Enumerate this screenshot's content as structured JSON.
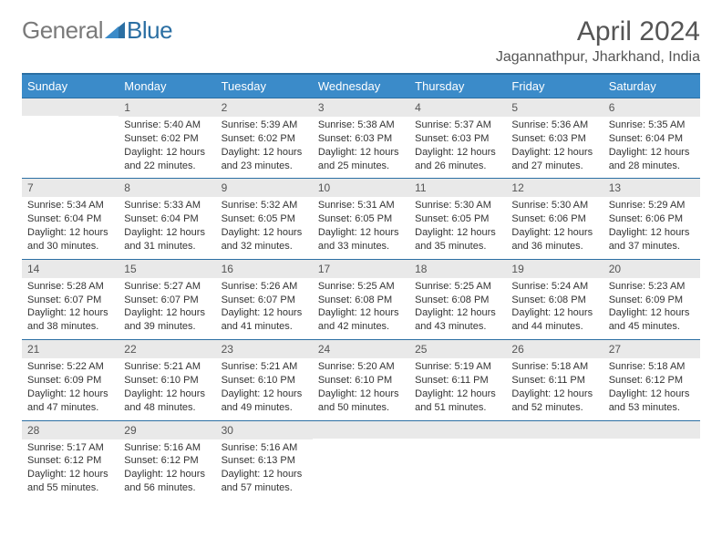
{
  "logo": {
    "text1": "General",
    "text2": "Blue"
  },
  "title": "April 2024",
  "location": "Jagannathpur, Jharkhand, India",
  "colors": {
    "header_bg": "#3b8bc9",
    "header_border": "#2b6fa3",
    "daynum_bg": "#e9e9e9",
    "text": "#333333",
    "muted": "#555555"
  },
  "weekdays": [
    "Sunday",
    "Monday",
    "Tuesday",
    "Wednesday",
    "Thursday",
    "Friday",
    "Saturday"
  ],
  "weeks": [
    [
      {
        "day": "",
        "lines": []
      },
      {
        "day": "1",
        "lines": [
          "Sunrise: 5:40 AM",
          "Sunset: 6:02 PM",
          "Daylight: 12 hours and 22 minutes."
        ]
      },
      {
        "day": "2",
        "lines": [
          "Sunrise: 5:39 AM",
          "Sunset: 6:02 PM",
          "Daylight: 12 hours and 23 minutes."
        ]
      },
      {
        "day": "3",
        "lines": [
          "Sunrise: 5:38 AM",
          "Sunset: 6:03 PM",
          "Daylight: 12 hours and 25 minutes."
        ]
      },
      {
        "day": "4",
        "lines": [
          "Sunrise: 5:37 AM",
          "Sunset: 6:03 PM",
          "Daylight: 12 hours and 26 minutes."
        ]
      },
      {
        "day": "5",
        "lines": [
          "Sunrise: 5:36 AM",
          "Sunset: 6:03 PM",
          "Daylight: 12 hours and 27 minutes."
        ]
      },
      {
        "day": "6",
        "lines": [
          "Sunrise: 5:35 AM",
          "Sunset: 6:04 PM",
          "Daylight: 12 hours and 28 minutes."
        ]
      }
    ],
    [
      {
        "day": "7",
        "lines": [
          "Sunrise: 5:34 AM",
          "Sunset: 6:04 PM",
          "Daylight: 12 hours and 30 minutes."
        ]
      },
      {
        "day": "8",
        "lines": [
          "Sunrise: 5:33 AM",
          "Sunset: 6:04 PM",
          "Daylight: 12 hours and 31 minutes."
        ]
      },
      {
        "day": "9",
        "lines": [
          "Sunrise: 5:32 AM",
          "Sunset: 6:05 PM",
          "Daylight: 12 hours and 32 minutes."
        ]
      },
      {
        "day": "10",
        "lines": [
          "Sunrise: 5:31 AM",
          "Sunset: 6:05 PM",
          "Daylight: 12 hours and 33 minutes."
        ]
      },
      {
        "day": "11",
        "lines": [
          "Sunrise: 5:30 AM",
          "Sunset: 6:05 PM",
          "Daylight: 12 hours and 35 minutes."
        ]
      },
      {
        "day": "12",
        "lines": [
          "Sunrise: 5:30 AM",
          "Sunset: 6:06 PM",
          "Daylight: 12 hours and 36 minutes."
        ]
      },
      {
        "day": "13",
        "lines": [
          "Sunrise: 5:29 AM",
          "Sunset: 6:06 PM",
          "Daylight: 12 hours and 37 minutes."
        ]
      }
    ],
    [
      {
        "day": "14",
        "lines": [
          "Sunrise: 5:28 AM",
          "Sunset: 6:07 PM",
          "Daylight: 12 hours and 38 minutes."
        ]
      },
      {
        "day": "15",
        "lines": [
          "Sunrise: 5:27 AM",
          "Sunset: 6:07 PM",
          "Daylight: 12 hours and 39 minutes."
        ]
      },
      {
        "day": "16",
        "lines": [
          "Sunrise: 5:26 AM",
          "Sunset: 6:07 PM",
          "Daylight: 12 hours and 41 minutes."
        ]
      },
      {
        "day": "17",
        "lines": [
          "Sunrise: 5:25 AM",
          "Sunset: 6:08 PM",
          "Daylight: 12 hours and 42 minutes."
        ]
      },
      {
        "day": "18",
        "lines": [
          "Sunrise: 5:25 AM",
          "Sunset: 6:08 PM",
          "Daylight: 12 hours and 43 minutes."
        ]
      },
      {
        "day": "19",
        "lines": [
          "Sunrise: 5:24 AM",
          "Sunset: 6:08 PM",
          "Daylight: 12 hours and 44 minutes."
        ]
      },
      {
        "day": "20",
        "lines": [
          "Sunrise: 5:23 AM",
          "Sunset: 6:09 PM",
          "Daylight: 12 hours and 45 minutes."
        ]
      }
    ],
    [
      {
        "day": "21",
        "lines": [
          "Sunrise: 5:22 AM",
          "Sunset: 6:09 PM",
          "Daylight: 12 hours and 47 minutes."
        ]
      },
      {
        "day": "22",
        "lines": [
          "Sunrise: 5:21 AM",
          "Sunset: 6:10 PM",
          "Daylight: 12 hours and 48 minutes."
        ]
      },
      {
        "day": "23",
        "lines": [
          "Sunrise: 5:21 AM",
          "Sunset: 6:10 PM",
          "Daylight: 12 hours and 49 minutes."
        ]
      },
      {
        "day": "24",
        "lines": [
          "Sunrise: 5:20 AM",
          "Sunset: 6:10 PM",
          "Daylight: 12 hours and 50 minutes."
        ]
      },
      {
        "day": "25",
        "lines": [
          "Sunrise: 5:19 AM",
          "Sunset: 6:11 PM",
          "Daylight: 12 hours and 51 minutes."
        ]
      },
      {
        "day": "26",
        "lines": [
          "Sunrise: 5:18 AM",
          "Sunset: 6:11 PM",
          "Daylight: 12 hours and 52 minutes."
        ]
      },
      {
        "day": "27",
        "lines": [
          "Sunrise: 5:18 AM",
          "Sunset: 6:12 PM",
          "Daylight: 12 hours and 53 minutes."
        ]
      }
    ],
    [
      {
        "day": "28",
        "lines": [
          "Sunrise: 5:17 AM",
          "Sunset: 6:12 PM",
          "Daylight: 12 hours and 55 minutes."
        ]
      },
      {
        "day": "29",
        "lines": [
          "Sunrise: 5:16 AM",
          "Sunset: 6:12 PM",
          "Daylight: 12 hours and 56 minutes."
        ]
      },
      {
        "day": "30",
        "lines": [
          "Sunrise: 5:16 AM",
          "Sunset: 6:13 PM",
          "Daylight: 12 hours and 57 minutes."
        ]
      },
      {
        "day": "",
        "lines": []
      },
      {
        "day": "",
        "lines": []
      },
      {
        "day": "",
        "lines": []
      },
      {
        "day": "",
        "lines": []
      }
    ]
  ]
}
